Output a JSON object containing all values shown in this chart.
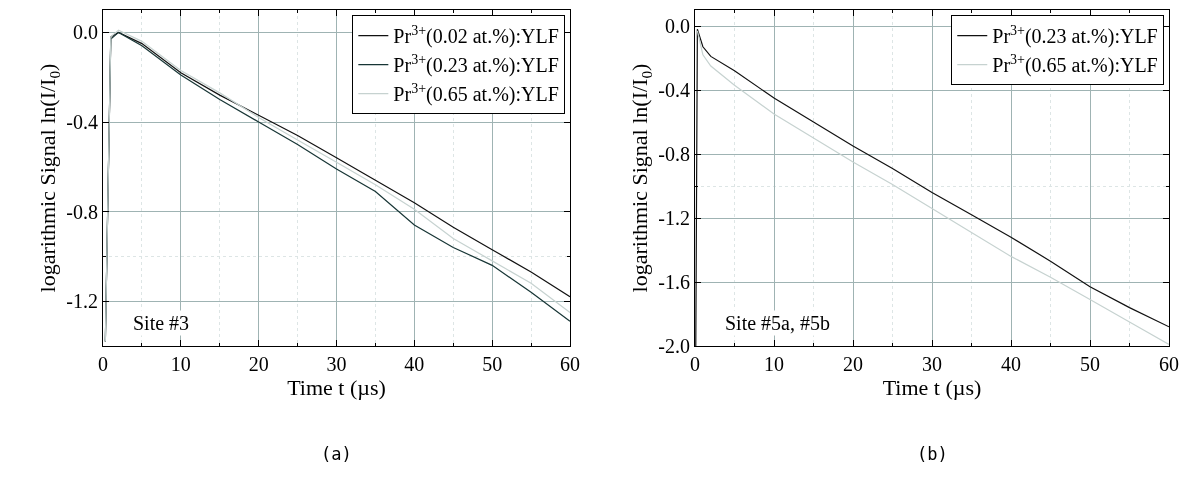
{
  "chart_data": [
    {
      "type": "line",
      "xlabel": "Time t (µs)",
      "ylabel": "logarithmic Signal ln(I/I$_{0}$)",
      "xlim": [
        0,
        60
      ],
      "ylim": [
        -1.4,
        0.1
      ],
      "xticks": [
        0,
        10,
        20,
        30,
        40,
        50,
        60
      ],
      "yticks": [
        {
          "value": 0,
          "label": "0.0"
        },
        {
          "value": -0.4,
          "label": "-0.4"
        },
        {
          "value": -0.8,
          "label": "-0.8"
        },
        {
          "value": -1.2,
          "label": "-1.2"
        }
      ],
      "grid": true,
      "legend": "top right",
      "annotations": [
        "Site #3",
        "(a)"
      ],
      "series": [
        {
          "name": "Pr$^{3+}$(0.02 at.%):YLF",
          "color": "#111111",
          "x": [
            0.3,
            1,
            2,
            5,
            10,
            15,
            20,
            25,
            30,
            35,
            40,
            45,
            50,
            55,
            60
          ],
          "values": [
            -1.38,
            -0.02,
            0,
            -0.05,
            -0.18,
            -0.28,
            -0.37,
            -0.46,
            -0.56,
            -0.66,
            -0.76,
            -0.87,
            -0.97,
            -1.07,
            -1.18
          ]
        },
        {
          "name": "Pr$^{3+}$(0.23 at.%):YLF",
          "color": "#173535",
          "x": [
            0.3,
            1,
            2,
            5,
            10,
            15,
            20,
            25,
            30,
            35,
            40,
            45,
            50,
            55,
            60
          ],
          "values": [
            -1.38,
            -0.03,
            0,
            -0.06,
            -0.19,
            -0.3,
            -0.4,
            -0.5,
            -0.61,
            -0.71,
            -0.86,
            -0.96,
            -1.04,
            -1.16,
            -1.29
          ]
        },
        {
          "name": "Pr$^{3+}$(0.65 at.%):YLF",
          "color": "#c6d2d0",
          "x": [
            0.3,
            1,
            2,
            5,
            10,
            15,
            20,
            25,
            30,
            35,
            40,
            45,
            50,
            55,
            60
          ],
          "values": [
            -1.38,
            -0.02,
            0.01,
            -0.04,
            -0.17,
            -0.27,
            -0.38,
            -0.48,
            -0.58,
            -0.68,
            -0.79,
            -0.92,
            -1.02,
            -1.12,
            -1.25
          ]
        }
      ]
    },
    {
      "type": "line",
      "xlabel": "Time t (µs)",
      "ylabel": "logarithmic Signal ln(I/I$_{0}$)",
      "xlim": [
        0,
        60
      ],
      "ylim": [
        -2.0,
        0.1
      ],
      "xticks": [
        0,
        10,
        20,
        30,
        40,
        50,
        60
      ],
      "yticks": [
        {
          "value": 0,
          "label": "0.0"
        },
        {
          "value": -0.4,
          "label": "-0.4"
        },
        {
          "value": -0.8,
          "label": "-0.8"
        },
        {
          "value": -1.2,
          "label": "-1.2"
        },
        {
          "value": -1.6,
          "label": "-1.6"
        },
        {
          "value": -2.0,
          "label": "-2.0"
        }
      ],
      "grid": true,
      "legend": "top right",
      "annotations": [
        "Site #5a, #5b",
        "(b)"
      ],
      "series": [
        {
          "name": "Pr$^{3+}$(0.23 at.%):YLF",
          "color": "#111111",
          "x": [
            0.1,
            0.3,
            1,
            2,
            5,
            10,
            15,
            20,
            25,
            30,
            35,
            40,
            45,
            50,
            55,
            60
          ],
          "values": [
            -2.0,
            -0.02,
            -0.13,
            -0.19,
            -0.28,
            -0.45,
            -0.6,
            -0.75,
            -0.89,
            -1.04,
            -1.18,
            -1.32,
            -1.47,
            -1.63,
            -1.76,
            -1.88
          ]
        },
        {
          "name": "Pr$^{3+}$(0.65 at.%):YLF",
          "color": "#c6d2d0",
          "x": [
            0.3,
            1,
            2,
            5,
            10,
            15,
            20,
            25,
            30,
            35,
            40,
            45,
            50,
            55,
            60
          ],
          "values": [
            -0.03,
            -0.18,
            -0.25,
            -0.37,
            -0.55,
            -0.7,
            -0.85,
            -0.99,
            -1.14,
            -1.29,
            -1.44,
            -1.57,
            -1.71,
            -1.85,
            -1.99
          ]
        }
      ]
    }
  ]
}
